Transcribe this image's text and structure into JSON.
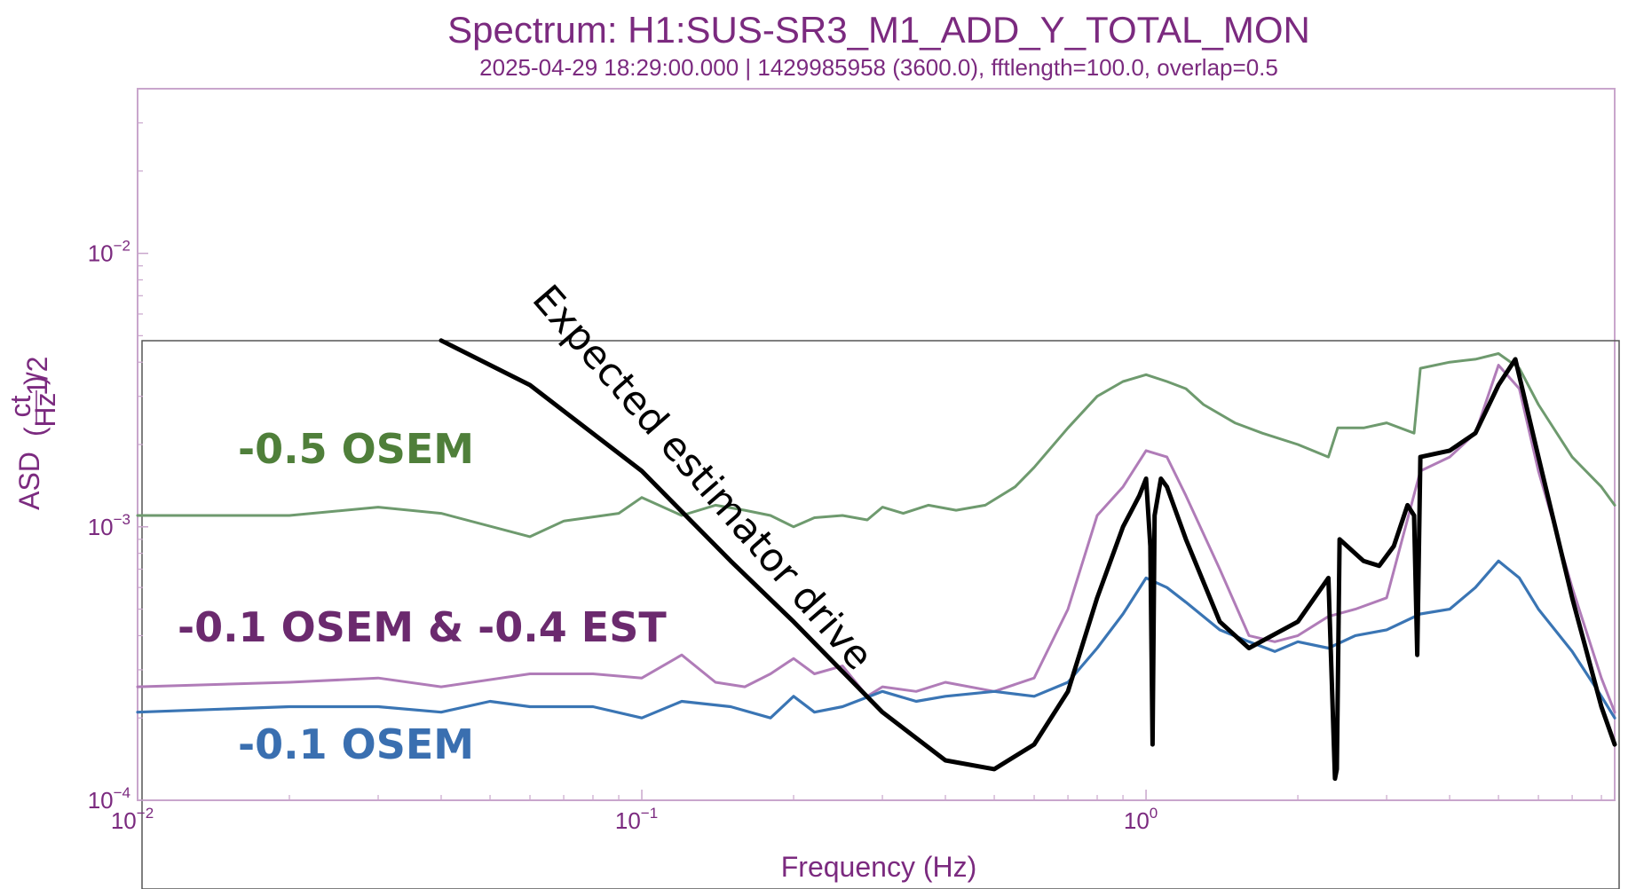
{
  "chart_data": {
    "type": "line",
    "title": "Spectrum: H1:SUS-SR3_M1_ADD_Y_TOTAL_MON",
    "subtitle": "2025-04-29 18:29:00.000 | 1429985958 (3600.0), fftlength=100.0, overlap=0.5",
    "xlabel": "Frequency (Hz)",
    "ylabel": "ASD",
    "ylabel_unit_num": "ct",
    "ylabel_unit_den": "Hz",
    "ylabel_unit_exp": "1/2",
    "xscale": "log",
    "yscale": "log",
    "xlim": [
      0.01,
      8.5
    ],
    "ylim": [
      0.0001,
      0.04
    ],
    "x_ticks": [
      {
        "value": 0.01,
        "base": "10",
        "exp": "−2"
      },
      {
        "value": 0.1,
        "base": "10",
        "exp": "−1"
      },
      {
        "value": 1,
        "base": "10",
        "exp": "0"
      }
    ],
    "y_ticks": [
      {
        "value": 0.0001,
        "base": "10",
        "exp": "−4"
      },
      {
        "value": 0.001,
        "base": "10",
        "exp": "−3"
      },
      {
        "value": 0.01,
        "base": "10",
        "exp": "−2"
      }
    ],
    "colors": {
      "green": "#6e9a6e",
      "purple": "#b07cb8",
      "blue": "#3a75b4",
      "black": "#000000",
      "frame": "#c9a6cc",
      "text": "#7b2a7f"
    },
    "series": [
      {
        "color_key": "green",
        "x": [
          0.01,
          0.02,
          0.03,
          0.04,
          0.06,
          0.07,
          0.09,
          0.1,
          0.12,
          0.14,
          0.16,
          0.18,
          0.2,
          0.22,
          0.25,
          0.28,
          0.3,
          0.33,
          0.37,
          0.42,
          0.48,
          0.55,
          0.6,
          0.7,
          0.8,
          0.9,
          1.0,
          1.1,
          1.2,
          1.3,
          1.5,
          1.7,
          2.0,
          2.3,
          2.4,
          2.7,
          3.0,
          3.4,
          3.5,
          4.0,
          4.5,
          5.0,
          5.5,
          6.0,
          7.0,
          8.0,
          8.5
        ],
        "y": [
          0.0011,
          0.0011,
          0.00118,
          0.00112,
          0.00092,
          0.00105,
          0.00112,
          0.00128,
          0.0011,
          0.0012,
          0.00115,
          0.0011,
          0.001,
          0.00108,
          0.0011,
          0.00106,
          0.00118,
          0.00112,
          0.0012,
          0.00115,
          0.0012,
          0.0014,
          0.00165,
          0.0023,
          0.003,
          0.0034,
          0.0036,
          0.0034,
          0.0032,
          0.0028,
          0.0024,
          0.0022,
          0.002,
          0.0018,
          0.0023,
          0.0023,
          0.0024,
          0.0022,
          0.0038,
          0.004,
          0.0041,
          0.0043,
          0.0038,
          0.0028,
          0.0018,
          0.0014,
          0.0012
        ]
      },
      {
        "color_key": "purple",
        "x": [
          0.01,
          0.02,
          0.03,
          0.04,
          0.06,
          0.08,
          0.1,
          0.12,
          0.14,
          0.16,
          0.18,
          0.2,
          0.22,
          0.25,
          0.28,
          0.3,
          0.35,
          0.4,
          0.5,
          0.6,
          0.7,
          0.8,
          0.9,
          1.0,
          1.1,
          1.2,
          1.4,
          1.6,
          1.8,
          2.0,
          2.3,
          2.6,
          3.0,
          3.5,
          4.0,
          4.5,
          5.0,
          5.5,
          6.0,
          7.0,
          8.0,
          8.5
        ],
        "y": [
          0.00026,
          0.00027,
          0.00028,
          0.00026,
          0.00029,
          0.00029,
          0.00028,
          0.00034,
          0.00027,
          0.00026,
          0.00029,
          0.00033,
          0.00029,
          0.00031,
          0.00024,
          0.00026,
          0.00025,
          0.00027,
          0.00025,
          0.00028,
          0.0005,
          0.0011,
          0.0014,
          0.0019,
          0.0018,
          0.0013,
          0.0007,
          0.0004,
          0.00038,
          0.0004,
          0.00047,
          0.0005,
          0.00055,
          0.0016,
          0.0018,
          0.0022,
          0.0039,
          0.0032,
          0.0016,
          0.0006,
          0.00028,
          0.00021
        ]
      },
      {
        "color_key": "blue",
        "x": [
          0.01,
          0.02,
          0.03,
          0.04,
          0.05,
          0.06,
          0.08,
          0.1,
          0.12,
          0.15,
          0.18,
          0.2,
          0.22,
          0.25,
          0.3,
          0.35,
          0.4,
          0.5,
          0.6,
          0.7,
          0.8,
          0.9,
          1.0,
          1.1,
          1.2,
          1.4,
          1.6,
          1.8,
          2.0,
          2.3,
          2.6,
          3.0,
          3.5,
          4.0,
          4.5,
          5.0,
          5.5,
          6.0,
          7.0,
          8.0,
          8.5
        ],
        "y": [
          0.00021,
          0.00022,
          0.00022,
          0.00021,
          0.00023,
          0.00022,
          0.00022,
          0.0002,
          0.00023,
          0.00022,
          0.0002,
          0.00024,
          0.00021,
          0.00022,
          0.00025,
          0.00023,
          0.00024,
          0.00025,
          0.00024,
          0.00027,
          0.00036,
          0.00048,
          0.00065,
          0.0006,
          0.00053,
          0.00042,
          0.00038,
          0.00035,
          0.00038,
          0.00036,
          0.0004,
          0.00042,
          0.00048,
          0.0005,
          0.0006,
          0.00075,
          0.00065,
          0.0005,
          0.00035,
          0.00024,
          0.0002
        ]
      },
      {
        "color_key": "black",
        "x": [
          0.04,
          0.06,
          0.1,
          0.15,
          0.2,
          0.3,
          0.4,
          0.5,
          0.6,
          0.7,
          0.8,
          0.9,
          0.97,
          1.0,
          1.02,
          1.03,
          1.04,
          1.07,
          1.1,
          1.2,
          1.4,
          1.6,
          2.0,
          2.3,
          2.37,
          2.39,
          2.42,
          2.7,
          2.9,
          3.1,
          3.3,
          3.4,
          3.45,
          3.5,
          4.0,
          4.5,
          5.0,
          5.4,
          6.0,
          7.0,
          8.0,
          8.5
        ],
        "y": [
          0.0048,
          0.0033,
          0.0016,
          0.00075,
          0.00045,
          0.00021,
          0.00014,
          0.00013,
          0.00016,
          0.00025,
          0.00055,
          0.001,
          0.0013,
          0.0015,
          0.00085,
          0.00016,
          0.0011,
          0.0015,
          0.0014,
          0.0009,
          0.00045,
          0.00036,
          0.00045,
          0.00065,
          0.00012,
          0.00013,
          0.0009,
          0.00075,
          0.00072,
          0.00085,
          0.0012,
          0.0011,
          0.00034,
          0.0018,
          0.0019,
          0.0022,
          0.0033,
          0.0041,
          0.0018,
          0.00055,
          0.00022,
          0.00016
        ]
      }
    ],
    "annotations": [
      {
        "text": "-0.5 OSEM",
        "color_key": "green"
      },
      {
        "text": "-0.1 OSEM  &  -0.4 EST",
        "color_key": "purple"
      },
      {
        "text": "-0.1 OSEM",
        "color_key": "blue"
      },
      {
        "text": "Expected estimator drive",
        "color_key": "black"
      }
    ]
  }
}
